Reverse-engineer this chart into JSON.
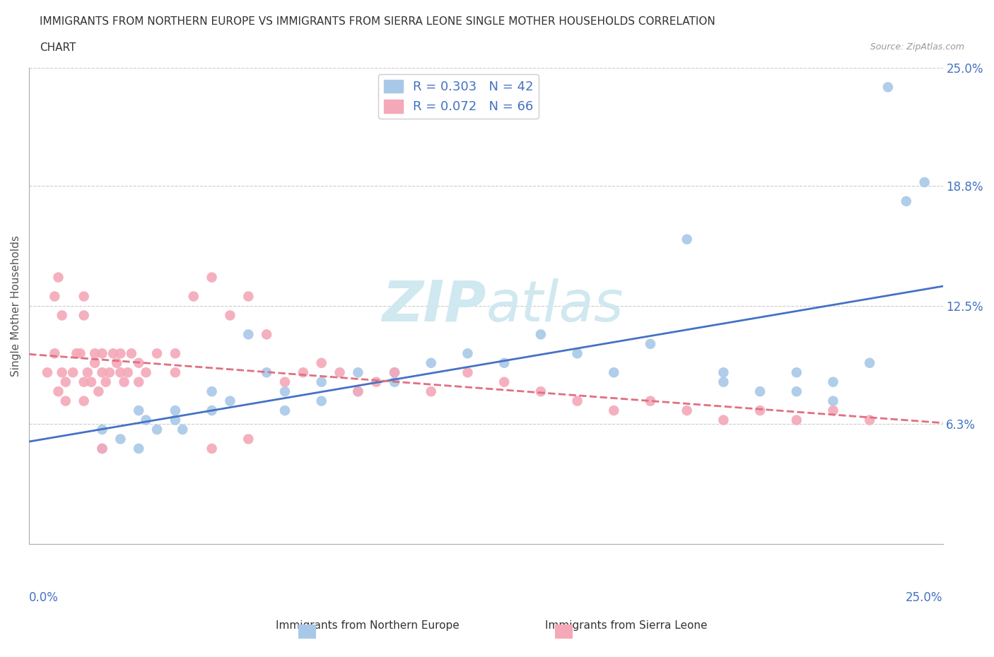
{
  "title_line1": "IMMIGRANTS FROM NORTHERN EUROPE VS IMMIGRANTS FROM SIERRA LEONE SINGLE MOTHER HOUSEHOLDS CORRELATION",
  "title_line2": "CHART",
  "source_text": "Source: ZipAtlas.com",
  "xlabel": "",
  "ylabel": "Single Mother Households",
  "x_min": 0.0,
  "x_max": 0.25,
  "y_min": 0.0,
  "y_max": 0.25,
  "y_tick_labels": [
    "6.3%",
    "12.5%",
    "18.8%",
    "25.0%"
  ],
  "y_ticks": [
    0.063,
    0.125,
    0.188,
    0.25
  ],
  "R_blue": 0.303,
  "N_blue": 42,
  "R_pink": 0.072,
  "N_pink": 66,
  "color_blue": "#a8c8e8",
  "color_pink": "#f4a8b8",
  "color_blue_text": "#4472c4",
  "color_pink_text": "#c44472",
  "trendline_blue_color": "#4472c4",
  "trendline_pink_color": "#e07080",
  "watermark_zip": "ZIP",
  "watermark_atlas": "atlas",
  "watermark_color": "#d0e8f0",
  "legend_label1": "R = 0.303   N = 42",
  "legend_label2": "R = 0.072   N = 66",
  "bottom_label1": "Immigrants from Northern Europe",
  "bottom_label2": "Immigrants from Sierra Leone",
  "blue_scatter_x": [
    0.02,
    0.02,
    0.025,
    0.03,
    0.03,
    0.032,
    0.035,
    0.04,
    0.04,
    0.042,
    0.05,
    0.05,
    0.055,
    0.06,
    0.065,
    0.07,
    0.07,
    0.08,
    0.08,
    0.09,
    0.09,
    0.1,
    0.1,
    0.11,
    0.12,
    0.13,
    0.14,
    0.15,
    0.16,
    0.17,
    0.18,
    0.19,
    0.19,
    0.2,
    0.21,
    0.21,
    0.22,
    0.23,
    0.235,
    0.24,
    0.245,
    0.22
  ],
  "blue_scatter_y": [
    0.05,
    0.06,
    0.055,
    0.07,
    0.05,
    0.065,
    0.06,
    0.065,
    0.07,
    0.06,
    0.08,
    0.07,
    0.075,
    0.11,
    0.09,
    0.08,
    0.07,
    0.085,
    0.075,
    0.09,
    0.08,
    0.09,
    0.085,
    0.095,
    0.1,
    0.095,
    0.11,
    0.1,
    0.09,
    0.105,
    0.16,
    0.09,
    0.085,
    0.08,
    0.09,
    0.08,
    0.085,
    0.095,
    0.24,
    0.18,
    0.19,
    0.075
  ],
  "pink_scatter_x": [
    0.005,
    0.007,
    0.008,
    0.009,
    0.01,
    0.01,
    0.012,
    0.013,
    0.014,
    0.015,
    0.015,
    0.016,
    0.017,
    0.018,
    0.018,
    0.019,
    0.02,
    0.02,
    0.021,
    0.022,
    0.023,
    0.024,
    0.025,
    0.025,
    0.026,
    0.027,
    0.028,
    0.03,
    0.03,
    0.032,
    0.035,
    0.04,
    0.04,
    0.045,
    0.05,
    0.055,
    0.06,
    0.065,
    0.07,
    0.075,
    0.08,
    0.085,
    0.09,
    0.095,
    0.1,
    0.11,
    0.12,
    0.13,
    0.14,
    0.15,
    0.16,
    0.17,
    0.18,
    0.19,
    0.2,
    0.21,
    0.22,
    0.23,
    0.05,
    0.06,
    0.007,
    0.008,
    0.009,
    0.015,
    0.015,
    0.02
  ],
  "pink_scatter_y": [
    0.09,
    0.1,
    0.08,
    0.09,
    0.085,
    0.075,
    0.09,
    0.1,
    0.1,
    0.085,
    0.075,
    0.09,
    0.085,
    0.095,
    0.1,
    0.08,
    0.09,
    0.1,
    0.085,
    0.09,
    0.1,
    0.095,
    0.09,
    0.1,
    0.085,
    0.09,
    0.1,
    0.095,
    0.085,
    0.09,
    0.1,
    0.1,
    0.09,
    0.13,
    0.14,
    0.12,
    0.13,
    0.11,
    0.085,
    0.09,
    0.095,
    0.09,
    0.08,
    0.085,
    0.09,
    0.08,
    0.09,
    0.085,
    0.08,
    0.075,
    0.07,
    0.075,
    0.07,
    0.065,
    0.07,
    0.065,
    0.07,
    0.065,
    0.05,
    0.055,
    0.13,
    0.14,
    0.12,
    0.13,
    0.12,
    0.05
  ]
}
